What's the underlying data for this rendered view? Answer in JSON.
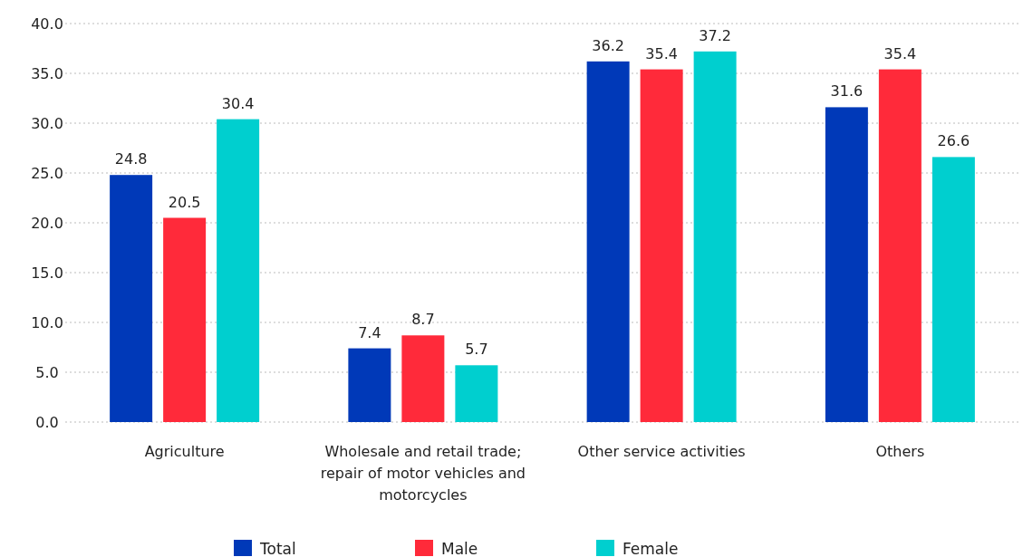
{
  "chart_data": {
    "type": "bar",
    "categories": [
      "Agriculture",
      "Wholesale and retail trade; repair of motor vehicles and motorcycles",
      "Other service activities",
      "Others"
    ],
    "series": [
      {
        "name": "Total",
        "color": "#0039b8",
        "values": [
          24.8,
          7.4,
          36.2,
          31.6
        ]
      },
      {
        "name": "Male",
        "color": "#ff2a3a",
        "values": [
          20.5,
          8.7,
          35.4,
          35.4
        ]
      },
      {
        "name": "Female",
        "color": "#00cfcf",
        "values": [
          30.4,
          5.7,
          37.2,
          26.6
        ]
      }
    ],
    "ylim": [
      0,
      40
    ],
    "yticks": [
      {
        "value": 0,
        "label": "0.0"
      },
      {
        "value": 5,
        "label": "5.0"
      },
      {
        "value": 10,
        "label": "10.0"
      },
      {
        "value": 15,
        "label": "15.0"
      },
      {
        "value": 20,
        "label": "20.0"
      },
      {
        "value": 25,
        "label": "25.0"
      },
      {
        "value": 30,
        "label": "30.0"
      },
      {
        "value": 35,
        "label": "35.0"
      },
      {
        "value": 40,
        "label": "40.0"
      }
    ],
    "grid": "y",
    "data_labels": true,
    "legend": "bottom"
  }
}
